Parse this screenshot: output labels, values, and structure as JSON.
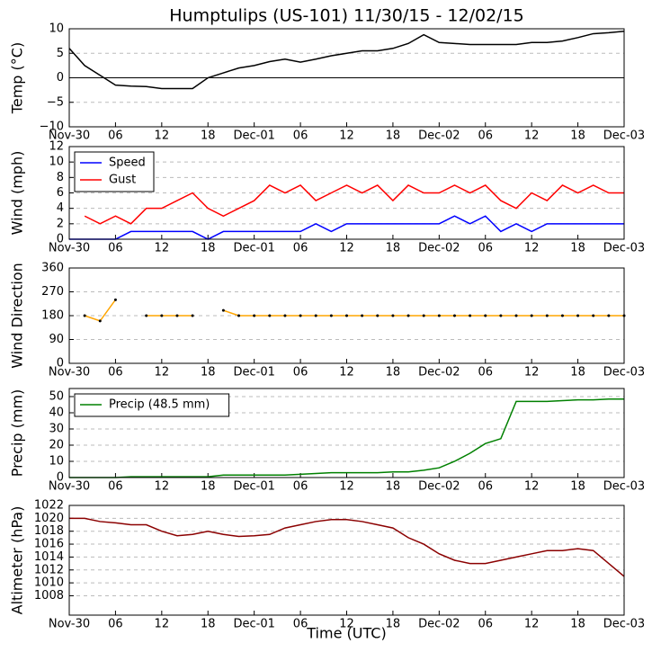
{
  "chart_data": [
    {
      "type": "line",
      "title": "Humptulips (US-101) 11/30/15 - 12/02/15",
      "ylabel": "Temp (°C)",
      "x": [
        0,
        2,
        4,
        6,
        8,
        10,
        12,
        14,
        16,
        18,
        20,
        22,
        24,
        26,
        28,
        30,
        32,
        34,
        36,
        38,
        40,
        42,
        44,
        46,
        48,
        50,
        52,
        54,
        56,
        58,
        60,
        62,
        64,
        66,
        68,
        70,
        72
      ],
      "series": [
        {
          "color": "#000000",
          "values": [
            6,
            2.5,
            0.5,
            -1.5,
            -1.7,
            -1.8,
            -2.2,
            -2.2,
            -2.2,
            0,
            1,
            2,
            2.5,
            3.3,
            3.8,
            3.2,
            3.8,
            4.5,
            5,
            5.5,
            5.5,
            6,
            7,
            8.8,
            7.2,
            7,
            6.8,
            6.8,
            6.8,
            6.8,
            7.2,
            7.2,
            7.5,
            8.2,
            9,
            9.2,
            9.5
          ]
        }
      ],
      "xlim": [
        0,
        72
      ],
      "xticks": [
        {
          "value": 0,
          "label": "Nov-30"
        },
        {
          "value": 6,
          "label": "06"
        },
        {
          "value": 12,
          "label": "12"
        },
        {
          "value": 18,
          "label": "18"
        },
        {
          "value": 24,
          "label": "Dec-01"
        },
        {
          "value": 30,
          "label": "06"
        },
        {
          "value": 36,
          "label": "12"
        },
        {
          "value": 42,
          "label": "18"
        },
        {
          "value": 48,
          "label": "Dec-02"
        },
        {
          "value": 54,
          "label": "06"
        },
        {
          "value": 60,
          "label": "12"
        },
        {
          "value": 66,
          "label": "18"
        },
        {
          "value": 72,
          "label": "Dec-03"
        }
      ],
      "ylim": [
        -10,
        10
      ],
      "yticks": [
        {
          "value": -10,
          "label": "−10"
        },
        {
          "value": -5,
          "label": "−5"
        },
        0,
        5,
        10
      ],
      "grid": true,
      "zero_line": true
    },
    {
      "type": "line",
      "ylabel": "Wind (mph)",
      "x": [
        0,
        2,
        4,
        6,
        8,
        10,
        12,
        14,
        16,
        18,
        20,
        22,
        24,
        26,
        28,
        30,
        32,
        34,
        36,
        38,
        40,
        42,
        44,
        46,
        48,
        50,
        52,
        54,
        56,
        58,
        60,
        62,
        64,
        66,
        68,
        70,
        72
      ],
      "series": [
        {
          "name": "Speed",
          "color": "#0000ff",
          "values": [
            0,
            0,
            0,
            0,
            1,
            1,
            1,
            1,
            1,
            0,
            1,
            1,
            1,
            1,
            1,
            1,
            2,
            1,
            2,
            2,
            2,
            2,
            2,
            2,
            2,
            3,
            2,
            3,
            1,
            2,
            1,
            2,
            2,
            2,
            2,
            2,
            2
          ]
        },
        {
          "name": "Gust",
          "color": "#ff0000",
          "values": [
            null,
            3,
            2,
            3,
            2,
            4,
            4,
            5,
            6,
            4,
            3,
            4,
            5,
            7,
            6,
            7,
            5,
            6,
            7,
            6,
            7,
            5,
            7,
            6,
            6,
            7,
            6,
            7,
            5,
            4,
            6,
            5,
            7,
            6,
            7,
            6,
            6
          ]
        }
      ],
      "xlim": [
        0,
        72
      ],
      "xticks": [
        {
          "value": 0,
          "label": "Nov-30"
        },
        {
          "value": 6,
          "label": "06"
        },
        {
          "value": 12,
          "label": "12"
        },
        {
          "value": 18,
          "label": "18"
        },
        {
          "value": 24,
          "label": "Dec-01"
        },
        {
          "value": 30,
          "label": "06"
        },
        {
          "value": 36,
          "label": "12"
        },
        {
          "value": 42,
          "label": "18"
        },
        {
          "value": 48,
          "label": "Dec-02"
        },
        {
          "value": 54,
          "label": "06"
        },
        {
          "value": 60,
          "label": "12"
        },
        {
          "value": 66,
          "label": "18"
        },
        {
          "value": 72,
          "label": "Dec-03"
        }
      ],
      "ylim": [
        0,
        12
      ],
      "yticks": [
        0,
        2,
        4,
        6,
        8,
        10,
        12
      ],
      "grid": true,
      "legend": "upper left"
    },
    {
      "type": "line",
      "ylabel": "Wind Direction",
      "x": [
        0,
        2,
        4,
        6,
        8,
        10,
        12,
        14,
        16,
        18,
        20,
        22,
        24,
        26,
        28,
        30,
        32,
        34,
        36,
        38,
        40,
        42,
        44,
        46,
        48,
        50,
        52,
        54,
        56,
        58,
        60,
        62,
        64,
        66,
        68,
        70,
        72
      ],
      "series": [
        {
          "color": "#ffa500",
          "marker_color": "#000000",
          "values": [
            null,
            180,
            160,
            240,
            null,
            180,
            180,
            180,
            180,
            null,
            200,
            180,
            180,
            180,
            180,
            180,
            180,
            180,
            180,
            180,
            180,
            180,
            180,
            180,
            180,
            180,
            180,
            180,
            180,
            180,
            180,
            180,
            180,
            180,
            180,
            180,
            180
          ]
        }
      ],
      "xlim": [
        0,
        72
      ],
      "xticks": [
        {
          "value": 0,
          "label": "Nov-30"
        },
        {
          "value": 6,
          "label": "06"
        },
        {
          "value": 12,
          "label": "12"
        },
        {
          "value": 18,
          "label": "18"
        },
        {
          "value": 24,
          "label": "Dec-01"
        },
        {
          "value": 30,
          "label": "06"
        },
        {
          "value": 36,
          "label": "12"
        },
        {
          "value": 42,
          "label": "18"
        },
        {
          "value": 48,
          "label": "Dec-02"
        },
        {
          "value": 54,
          "label": "06"
        },
        {
          "value": 60,
          "label": "12"
        },
        {
          "value": 66,
          "label": "18"
        },
        {
          "value": 72,
          "label": "Dec-03"
        }
      ],
      "ylim": [
        0,
        360
      ],
      "yticks": [
        0,
        90,
        180,
        270,
        360
      ],
      "grid": true
    },
    {
      "type": "line",
      "ylabel": "Precip (mm)",
      "x": [
        0,
        2,
        4,
        6,
        8,
        10,
        12,
        14,
        16,
        18,
        20,
        22,
        24,
        26,
        28,
        30,
        32,
        34,
        36,
        38,
        40,
        42,
        44,
        46,
        48,
        50,
        52,
        54,
        56,
        58,
        60,
        62,
        64,
        66,
        68,
        70,
        72
      ],
      "series": [
        {
          "name": "Precip (48.5 mm)",
          "color": "#008000",
          "values": [
            0,
            0,
            0,
            0,
            0.5,
            0.5,
            0.5,
            0.5,
            0.5,
            0.5,
            1.5,
            1.5,
            1.5,
            1.5,
            1.5,
            2,
            2.5,
            3,
            3,
            3,
            3,
            3.5,
            3.5,
            4.5,
            6,
            10,
            15,
            21,
            24,
            47,
            47,
            47,
            47.5,
            48,
            48,
            48.5,
            48.5
          ]
        }
      ],
      "xlim": [
        0,
        72
      ],
      "xticks": [
        {
          "value": 0,
          "label": "Nov-30"
        },
        {
          "value": 6,
          "label": "06"
        },
        {
          "value": 12,
          "label": "12"
        },
        {
          "value": 18,
          "label": "18"
        },
        {
          "value": 24,
          "label": "Dec-01"
        },
        {
          "value": 30,
          "label": "06"
        },
        {
          "value": 36,
          "label": "12"
        },
        {
          "value": 42,
          "label": "18"
        },
        {
          "value": 48,
          "label": "Dec-02"
        },
        {
          "value": 54,
          "label": "06"
        },
        {
          "value": 60,
          "label": "12"
        },
        {
          "value": 66,
          "label": "18"
        },
        {
          "value": 72,
          "label": "Dec-03"
        }
      ],
      "ylim": [
        0,
        55
      ],
      "yticks": [
        0,
        10,
        20,
        30,
        40,
        50
      ],
      "grid": true,
      "legend": "upper left"
    },
    {
      "type": "line",
      "ylabel": "Altimeter (hPa)",
      "xlabel": "Time (UTC)",
      "x": [
        0,
        2,
        4,
        6,
        8,
        10,
        12,
        14,
        16,
        18,
        20,
        22,
        24,
        26,
        28,
        30,
        32,
        34,
        36,
        38,
        40,
        42,
        44,
        46,
        48,
        50,
        52,
        54,
        56,
        58,
        60,
        62,
        64,
        66,
        68,
        70,
        72
      ],
      "series": [
        {
          "color": "#8b0000",
          "values": [
            1020,
            1020,
            1019.5,
            1019.3,
            1019,
            1019,
            1018,
            1017.3,
            1017.5,
            1018,
            1017.5,
            1017.2,
            1017.3,
            1017.5,
            1018.5,
            1019,
            1019.5,
            1019.8,
            1019.8,
            1019.5,
            1019,
            1018.5,
            1017,
            1016,
            1014.5,
            1013.5,
            1013,
            1013,
            1013.5,
            1014,
            1014.5,
            1015,
            1015,
            1015.3,
            1015,
            1013,
            1011
          ]
        }
      ],
      "xlim": [
        0,
        72
      ],
      "xticks": [
        {
          "value": 0,
          "label": "Nov-30"
        },
        {
          "value": 6,
          "label": "06"
        },
        {
          "value": 12,
          "label": "12"
        },
        {
          "value": 18,
          "label": "18"
        },
        {
          "value": 24,
          "label": "Dec-01"
        },
        {
          "value": 30,
          "label": "06"
        },
        {
          "value": 36,
          "label": "12"
        },
        {
          "value": 42,
          "label": "18"
        },
        {
          "value": 48,
          "label": "Dec-02"
        },
        {
          "value": 54,
          "label": "06"
        },
        {
          "value": 60,
          "label": "12"
        },
        {
          "value": 66,
          "label": "18"
        },
        {
          "value": 72,
          "label": "Dec-03"
        }
      ],
      "ylim": [
        1005,
        1022
      ],
      "yticks": [
        1008,
        1010,
        1012,
        1014,
        1016,
        1018,
        1020,
        1022
      ],
      "grid": true
    }
  ]
}
